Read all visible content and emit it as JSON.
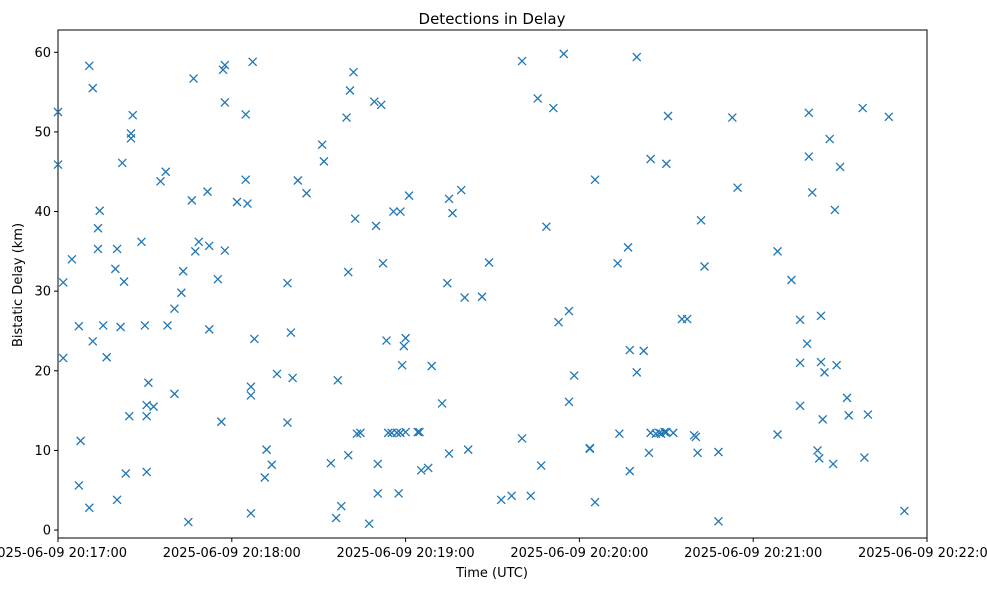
{
  "chart_data": {
    "type": "scatter",
    "title": "Detections in Delay",
    "xlabel": "Time (UTC)",
    "ylabel": "Bistatic Delay (km)",
    "x_is_time": true,
    "x_start": "2025-06-09 20:17:00",
    "xlim": [
      -0.0,
      5.0
    ],
    "ylim": [
      -1.0,
      62.8
    ],
    "x_ticks": [
      {
        "value": 0,
        "label": "2025-06-09 20:17:00"
      },
      {
        "value": 1,
        "label": "2025-06-09 20:18:00"
      },
      {
        "value": 2,
        "label": "2025-06-09 20:19:00"
      },
      {
        "value": 3,
        "label": "2025-06-09 20:20:00"
      },
      {
        "value": 4,
        "label": "2025-06-09 20:21:00"
      },
      {
        "value": 5,
        "label": "2025-06-09 20:22:00"
      }
    ],
    "y_ticks": [
      0,
      10,
      20,
      30,
      40,
      50,
      60
    ],
    "grid": false,
    "marker": "x",
    "color": "#1f77b4",
    "series": [
      {
        "points": [
          [
            0.0,
            52.5
          ],
          [
            0.0,
            45.9
          ],
          [
            0.03,
            31.1
          ],
          [
            0.03,
            21.6
          ],
          [
            0.08,
            34.0
          ],
          [
            0.12,
            25.6
          ],
          [
            0.12,
            5.6
          ],
          [
            0.13,
            11.2
          ],
          [
            0.18,
            58.3
          ],
          [
            0.18,
            2.8
          ],
          [
            0.2,
            55.5
          ],
          [
            0.2,
            23.7
          ],
          [
            0.23,
            35.3
          ],
          [
            0.23,
            37.9
          ],
          [
            0.24,
            40.1
          ],
          [
            0.26,
            25.7
          ],
          [
            0.28,
            21.7
          ],
          [
            0.33,
            32.8
          ],
          [
            0.34,
            35.3
          ],
          [
            0.34,
            3.8
          ],
          [
            0.36,
            25.5
          ],
          [
            0.37,
            46.1
          ],
          [
            0.38,
            31.2
          ],
          [
            0.39,
            7.1
          ],
          [
            0.41,
            14.3
          ],
          [
            0.42,
            49.8
          ],
          [
            0.42,
            49.2
          ],
          [
            0.43,
            52.1
          ],
          [
            0.48,
            36.2
          ],
          [
            0.5,
            25.7
          ],
          [
            0.51,
            7.3
          ],
          [
            0.51,
            15.7
          ],
          [
            0.51,
            14.3
          ],
          [
            0.52,
            18.5
          ],
          [
            0.55,
            15.5
          ],
          [
            0.59,
            43.8
          ],
          [
            0.62,
            45.0
          ],
          [
            0.63,
            25.7
          ],
          [
            0.67,
            17.1
          ],
          [
            0.67,
            27.8
          ],
          [
            0.71,
            29.8
          ],
          [
            0.72,
            32.5
          ],
          [
            0.75,
            1.0
          ],
          [
            0.77,
            41.4
          ],
          [
            0.78,
            56.7
          ],
          [
            0.79,
            35.0
          ],
          [
            0.81,
            36.2
          ],
          [
            0.86,
            42.5
          ],
          [
            0.87,
            25.2
          ],
          [
            0.87,
            35.7
          ],
          [
            0.92,
            31.5
          ],
          [
            0.94,
            13.6
          ],
          [
            0.95,
            57.8
          ],
          [
            0.96,
            58.4
          ],
          [
            0.96,
            53.7
          ],
          [
            0.96,
            35.1
          ],
          [
            1.03,
            41.2
          ],
          [
            1.08,
            44.0
          ],
          [
            1.08,
            52.2
          ],
          [
            1.09,
            41.0
          ],
          [
            1.11,
            18.0
          ],
          [
            1.11,
            16.9
          ],
          [
            1.11,
            2.1
          ],
          [
            1.12,
            58.8
          ],
          [
            1.13,
            24.0
          ],
          [
            1.19,
            6.6
          ],
          [
            1.2,
            10.1
          ],
          [
            1.23,
            8.2
          ],
          [
            1.26,
            19.6
          ],
          [
            1.32,
            13.5
          ],
          [
            1.32,
            31.0
          ],
          [
            1.34,
            24.8
          ],
          [
            1.35,
            19.1
          ],
          [
            1.38,
            43.9
          ],
          [
            1.43,
            42.3
          ],
          [
            1.52,
            48.4
          ],
          [
            1.53,
            46.3
          ],
          [
            1.57,
            8.4
          ],
          [
            1.6,
            1.5
          ],
          [
            1.61,
            18.8
          ],
          [
            1.63,
            3.0
          ],
          [
            1.66,
            51.8
          ],
          [
            1.67,
            9.4
          ],
          [
            1.67,
            32.4
          ],
          [
            1.68,
            55.2
          ],
          [
            1.7,
            57.5
          ],
          [
            1.71,
            39.1
          ],
          [
            1.72,
            12.1
          ],
          [
            1.74,
            12.2
          ],
          [
            1.79,
            0.8
          ],
          [
            1.82,
            53.8
          ],
          [
            1.83,
            38.2
          ],
          [
            1.84,
            8.3
          ],
          [
            1.84,
            4.6
          ],
          [
            1.86,
            53.4
          ],
          [
            1.87,
            33.5
          ],
          [
            1.89,
            23.8
          ],
          [
            1.9,
            12.2
          ],
          [
            1.92,
            12.2
          ],
          [
            1.93,
            40.0
          ],
          [
            1.95,
            12.2
          ],
          [
            1.96,
            4.6
          ],
          [
            1.97,
            40.0
          ],
          [
            1.97,
            12.2
          ],
          [
            1.98,
            20.7
          ],
          [
            1.99,
            23.1
          ],
          [
            2.0,
            24.1
          ],
          [
            2.0,
            12.3
          ],
          [
            2.02,
            42.0
          ],
          [
            2.07,
            12.3
          ],
          [
            2.08,
            12.3
          ],
          [
            2.09,
            7.5
          ],
          [
            2.13,
            7.8
          ],
          [
            2.15,
            20.6
          ],
          [
            2.21,
            15.9
          ],
          [
            2.24,
            31.0
          ],
          [
            2.25,
            9.6
          ],
          [
            2.25,
            41.6
          ],
          [
            2.27,
            39.8
          ],
          [
            2.32,
            42.7
          ],
          [
            2.34,
            29.2
          ],
          [
            2.36,
            10.1
          ],
          [
            2.44,
            29.3
          ],
          [
            2.48,
            33.6
          ],
          [
            2.55,
            3.8
          ],
          [
            2.61,
            4.3
          ],
          [
            2.67,
            58.9
          ],
          [
            2.67,
            11.5
          ],
          [
            2.72,
            4.3
          ],
          [
            2.76,
            54.2
          ],
          [
            2.78,
            8.1
          ],
          [
            2.81,
            38.1
          ],
          [
            2.85,
            53.0
          ],
          [
            2.88,
            26.1
          ],
          [
            2.91,
            59.8
          ],
          [
            2.94,
            27.5
          ],
          [
            2.94,
            16.1
          ],
          [
            2.97,
            19.4
          ],
          [
            3.06,
            10.3
          ],
          [
            3.06,
            10.2
          ],
          [
            3.09,
            44.0
          ],
          [
            3.09,
            3.5
          ],
          [
            3.22,
            33.5
          ],
          [
            3.23,
            12.1
          ],
          [
            3.28,
            35.5
          ],
          [
            3.29,
            22.6
          ],
          [
            3.29,
            7.4
          ],
          [
            3.33,
            59.4
          ],
          [
            3.33,
            19.8
          ],
          [
            3.37,
            22.5
          ],
          [
            3.4,
            9.7
          ],
          [
            3.41,
            46.6
          ],
          [
            3.41,
            12.2
          ],
          [
            3.44,
            12.1
          ],
          [
            3.46,
            12.2
          ],
          [
            3.47,
            12.1
          ],
          [
            3.49,
            12.3
          ],
          [
            3.5,
            12.3
          ],
          [
            3.5,
            46.0
          ],
          [
            3.51,
            52.0
          ],
          [
            3.54,
            12.2
          ],
          [
            3.59,
            26.5
          ],
          [
            3.62,
            26.5
          ],
          [
            3.66,
            11.9
          ],
          [
            3.67,
            11.7
          ],
          [
            3.68,
            9.7
          ],
          [
            3.7,
            38.9
          ],
          [
            3.72,
            33.1
          ],
          [
            3.8,
            9.8
          ],
          [
            3.8,
            1.1
          ],
          [
            3.88,
            51.8
          ],
          [
            3.91,
            43.0
          ],
          [
            4.14,
            12.0
          ],
          [
            4.14,
            35.0
          ],
          [
            4.22,
            31.4
          ],
          [
            4.27,
            26.4
          ],
          [
            4.27,
            21.0
          ],
          [
            4.27,
            15.6
          ],
          [
            4.31,
            23.4
          ],
          [
            4.32,
            52.4
          ],
          [
            4.32,
            46.9
          ],
          [
            4.34,
            42.4
          ],
          [
            4.37,
            10.0
          ],
          [
            4.38,
            9.0
          ],
          [
            4.39,
            26.9
          ],
          [
            4.39,
            21.1
          ],
          [
            4.4,
            13.9
          ],
          [
            4.41,
            19.8
          ],
          [
            4.44,
            49.1
          ],
          [
            4.46,
            8.3
          ],
          [
            4.47,
            40.2
          ],
          [
            4.48,
            20.7
          ],
          [
            4.5,
            45.6
          ],
          [
            4.54,
            16.6
          ],
          [
            4.55,
            14.4
          ],
          [
            4.63,
            53.0
          ],
          [
            4.64,
            9.1
          ],
          [
            4.66,
            14.5
          ],
          [
            4.78,
            51.9
          ],
          [
            4.87,
            2.4
          ]
        ]
      }
    ]
  }
}
